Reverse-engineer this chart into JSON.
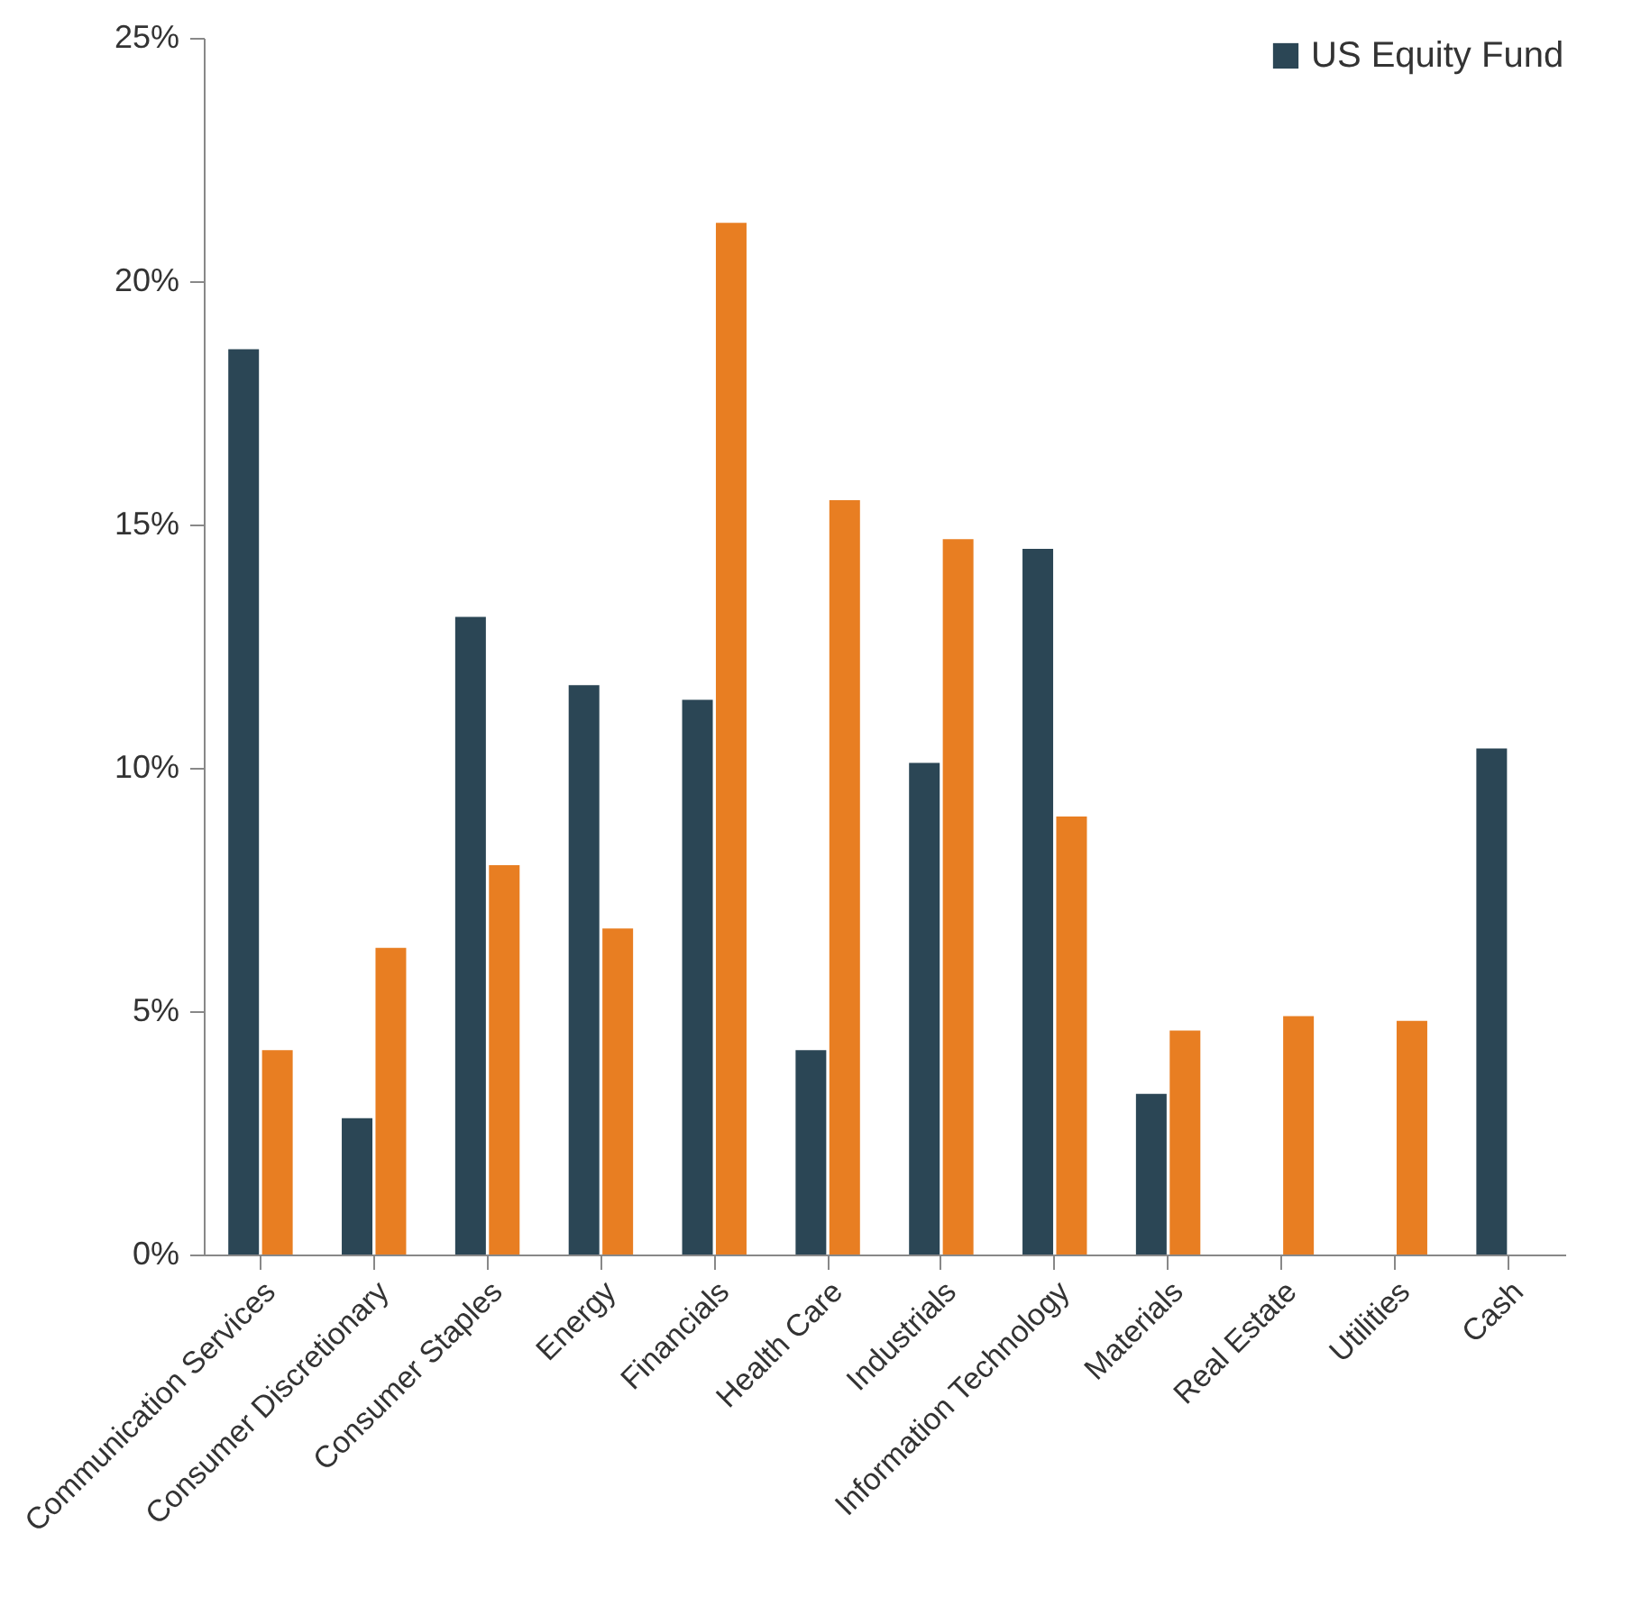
{
  "chart_data": {
    "type": "bar",
    "categories": [
      "Communication Services",
      "Consumer Discretionary",
      "Consumer Staples",
      "Energy",
      "Financials",
      "Health Care",
      "Industrials",
      "Information Technology",
      "Materials",
      "Real Estate",
      "Utilities",
      "Cash"
    ],
    "series": [
      {
        "name": "US Equity Fund",
        "color": "#2b4655",
        "values": [
          18.6,
          2.8,
          13.1,
          11.7,
          11.4,
          4.2,
          10.1,
          14.5,
          3.3,
          null,
          null,
          10.4
        ]
      },
      {
        "color": "#e87e22",
        "values": [
          4.2,
          6.3,
          8.0,
          6.7,
          21.2,
          15.5,
          14.7,
          9.0,
          4.6,
          4.9,
          4.8,
          null
        ]
      }
    ],
    "ylim": [
      0,
      25
    ],
    "yticks": [
      {
        "value": 0,
        "label": "0%"
      },
      {
        "value": 5,
        "label": "5%"
      },
      {
        "value": 10,
        "label": "10%"
      },
      {
        "value": 15,
        "label": "15%"
      },
      {
        "value": 20,
        "label": "20%"
      },
      {
        "value": 25,
        "label": "25%"
      }
    ],
    "grid": false,
    "legend": "top right"
  }
}
